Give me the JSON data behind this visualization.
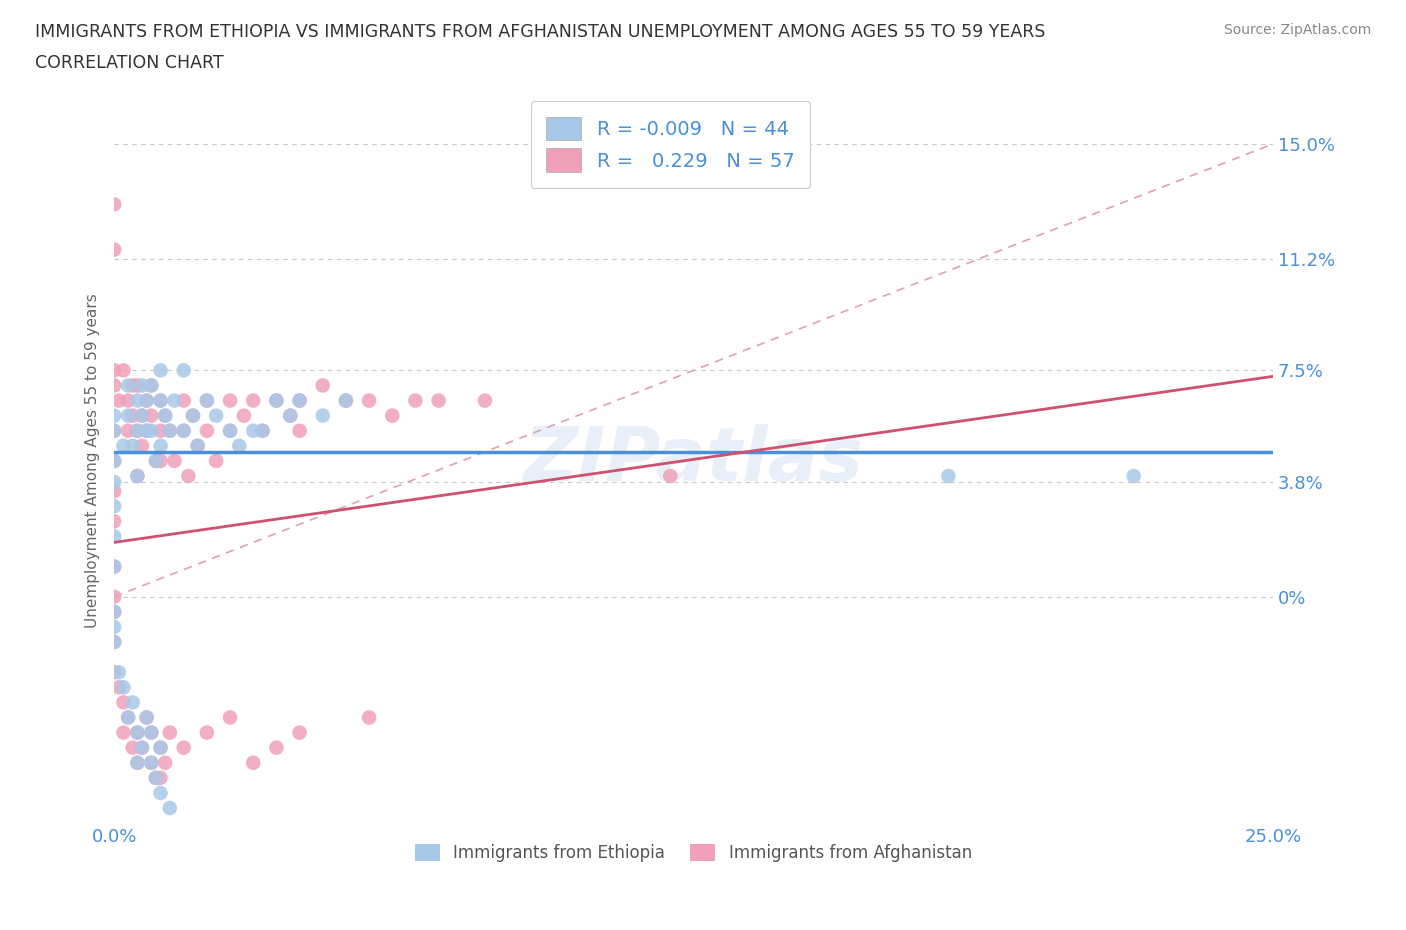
{
  "title_line1": "IMMIGRANTS FROM ETHIOPIA VS IMMIGRANTS FROM AFGHANISTAN UNEMPLOYMENT AMONG AGES 55 TO 59 YEARS",
  "title_line2": "CORRELATION CHART",
  "source": "Source: ZipAtlas.com",
  "ylabel": "Unemployment Among Ages 55 to 59 years",
  "xlim": [
    0.0,
    0.25
  ],
  "ylim": [
    -0.075,
    0.165
  ],
  "yticks": [
    0.0,
    0.038,
    0.075,
    0.112,
    0.15
  ],
  "ytick_labels": [
    "0%",
    "3.8%",
    "7.5%",
    "11.2%",
    "15.0%"
  ],
  "xticks": [
    0.0,
    0.05,
    0.1,
    0.15,
    0.2,
    0.25
  ],
  "xtick_labels": [
    "0.0%",
    "",
    "",
    "",
    "",
    "25.0%"
  ],
  "ethiopia_color": "#a8c8e8",
  "afghanistan_color": "#f0a0b8",
  "ethiopia_R": -0.009,
  "ethiopia_N": 44,
  "afghanistan_R": 0.229,
  "afghanistan_N": 57,
  "text_color": "#4a90d9",
  "grid_color": "#c8c8c8",
  "watermark": "ZIPatlas",
  "ethiopia_line_y0": 0.048,
  "ethiopia_line_y1": 0.048,
  "afghanistan_line_y0": 0.018,
  "afghanistan_line_y1": 0.073,
  "diag_line_color": "#e0a0b0",
  "diag_line_x": [
    0.0,
    0.25
  ],
  "diag_line_y": [
    0.0,
    0.15
  ],
  "ethiopia_scatter_x": [
    0.0,
    0.0,
    0.0,
    0.0,
    0.0,
    0.0,
    0.0,
    0.002,
    0.003,
    0.003,
    0.004,
    0.005,
    0.005,
    0.005,
    0.006,
    0.006,
    0.007,
    0.007,
    0.008,
    0.008,
    0.009,
    0.01,
    0.01,
    0.01,
    0.011,
    0.012,
    0.013,
    0.015,
    0.015,
    0.017,
    0.018,
    0.02,
    0.022,
    0.025,
    0.027,
    0.03,
    0.032,
    0.035,
    0.038,
    0.04,
    0.045,
    0.05,
    0.18,
    0.22
  ],
  "ethiopia_scatter_y": [
    0.06,
    0.055,
    0.045,
    0.038,
    0.03,
    0.02,
    0.01,
    0.05,
    0.07,
    0.06,
    0.05,
    0.065,
    0.055,
    0.04,
    0.07,
    0.06,
    0.065,
    0.055,
    0.07,
    0.055,
    0.045,
    0.075,
    0.065,
    0.05,
    0.06,
    0.055,
    0.065,
    0.075,
    0.055,
    0.06,
    0.05,
    0.065,
    0.06,
    0.055,
    0.05,
    0.055,
    0.055,
    0.065,
    0.06,
    0.065,
    0.06,
    0.065,
    0.04,
    0.04
  ],
  "afghanistan_scatter_x": [
    0.0,
    0.0,
    0.0,
    0.0,
    0.0,
    0.0,
    0.0,
    0.0,
    0.0,
    0.0,
    0.001,
    0.002,
    0.003,
    0.003,
    0.004,
    0.004,
    0.005,
    0.005,
    0.005,
    0.006,
    0.006,
    0.007,
    0.007,
    0.008,
    0.008,
    0.009,
    0.01,
    0.01,
    0.01,
    0.011,
    0.012,
    0.013,
    0.015,
    0.015,
    0.016,
    0.017,
    0.018,
    0.02,
    0.02,
    0.022,
    0.025,
    0.025,
    0.028,
    0.03,
    0.032,
    0.035,
    0.038,
    0.04,
    0.04,
    0.045,
    0.05,
    0.055,
    0.06,
    0.065,
    0.07,
    0.08,
    0.12
  ],
  "afghanistan_scatter_y": [
    0.13,
    0.115,
    0.075,
    0.07,
    0.055,
    0.045,
    0.035,
    0.025,
    0.01,
    0.0,
    0.065,
    0.075,
    0.065,
    0.055,
    0.07,
    0.06,
    0.07,
    0.055,
    0.04,
    0.06,
    0.05,
    0.065,
    0.055,
    0.07,
    0.06,
    0.045,
    0.065,
    0.055,
    0.045,
    0.06,
    0.055,
    0.045,
    0.065,
    0.055,
    0.04,
    0.06,
    0.05,
    0.065,
    0.055,
    0.045,
    0.065,
    0.055,
    0.06,
    0.065,
    0.055,
    0.065,
    0.06,
    0.065,
    0.055,
    0.07,
    0.065,
    0.065,
    0.06,
    0.065,
    0.065,
    0.065,
    0.04
  ],
  "ethiopia_neg_x": [
    0.0,
    0.0,
    0.0,
    0.001,
    0.002,
    0.003,
    0.004,
    0.005,
    0.005,
    0.006,
    0.007,
    0.008,
    0.008,
    0.009,
    0.01,
    0.01,
    0.012
  ],
  "ethiopia_neg_y": [
    -0.005,
    -0.01,
    -0.015,
    -0.025,
    -0.03,
    -0.04,
    -0.035,
    -0.045,
    -0.055,
    -0.05,
    -0.04,
    -0.045,
    -0.055,
    -0.06,
    -0.05,
    -0.065,
    -0.07
  ],
  "afghanistan_neg_x": [
    0.0,
    0.0,
    0.0,
    0.001,
    0.002,
    0.002,
    0.003,
    0.004,
    0.005,
    0.005,
    0.006,
    0.007,
    0.008,
    0.008,
    0.009,
    0.01,
    0.01,
    0.011,
    0.012,
    0.015,
    0.02,
    0.025,
    0.03,
    0.035,
    0.04,
    0.055
  ],
  "afghanistan_neg_y": [
    -0.005,
    -0.015,
    -0.025,
    -0.03,
    -0.035,
    -0.045,
    -0.04,
    -0.05,
    -0.045,
    -0.055,
    -0.05,
    -0.04,
    -0.045,
    -0.055,
    -0.06,
    -0.05,
    -0.06,
    -0.055,
    -0.045,
    -0.05,
    -0.045,
    -0.04,
    -0.055,
    -0.05,
    -0.045,
    -0.04
  ]
}
